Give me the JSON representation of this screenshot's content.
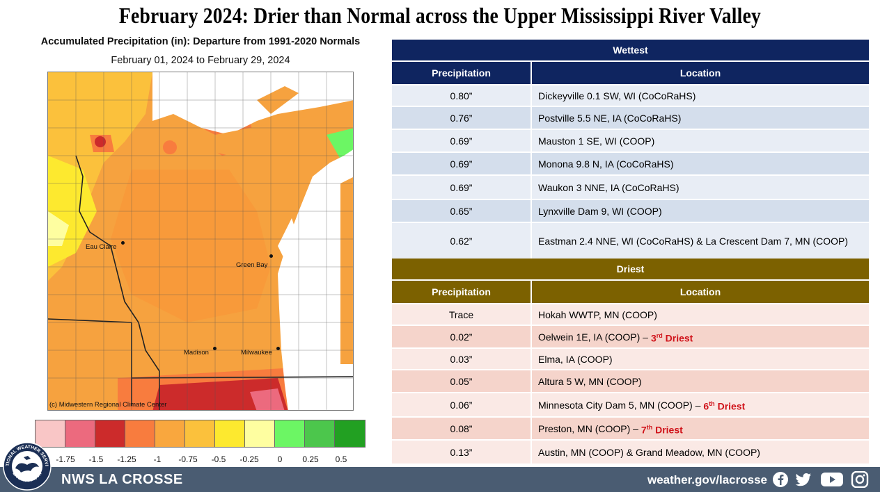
{
  "title": "February 2024:  Drier than Normal across the Upper Mississippi River Valley",
  "map": {
    "title": "Accumulated Precipitation (in): Departure from 1991-2020 Normals",
    "subtitle": "February 01, 2024 to February 29, 2024",
    "credit": "(c) Midwestern Regional Climate Center",
    "cities": [
      "Eau Claire",
      "Green Bay",
      "Madison",
      "Milwaukee"
    ]
  },
  "legend": {
    "colors": [
      "#f9c6c6",
      "#ec6a7e",
      "#cc2b2b",
      "#f87c3e",
      "#f9a73e",
      "#fbc13c",
      "#fde92f",
      "#fefea0",
      "#6cf664",
      "#4cc64c",
      "#22a022"
    ],
    "labels": [
      "-1.75",
      "-1.5",
      "-1.25",
      "-1",
      "-0.75",
      "-0.5",
      "-0.25",
      "0",
      "0.25",
      "0.5"
    ]
  },
  "wettest": {
    "title": "Wettest",
    "col_precip": "Precipitation",
    "col_location": "Location",
    "rows": [
      {
        "precip": "0.80”",
        "location": "Dickeyville  0.1 SW, WI (CoCoRaHS)"
      },
      {
        "precip": "0.76”",
        "location": "Postville 5.5 NE, IA (CoCoRaHS)"
      },
      {
        "precip": "0.69”",
        "location": "Mauston 1 SE, WI (COOP)"
      },
      {
        "precip": "0.69”",
        "location": "Monona 9.8 N, IA (CoCoRaHS)"
      },
      {
        "precip": "0.69”",
        "location": "Waukon 3 NNE, IA (CoCoRaHS)"
      },
      {
        "precip": "0.65”",
        "location": "Lynxville Dam 9, WI (COOP)"
      },
      {
        "precip": "0.62”",
        "location": "Eastman 2.4 NNE, WI (CoCoRaHS) & La Crescent Dam 7, MN (COOP)"
      }
    ]
  },
  "driest": {
    "title": "Driest",
    "col_precip": "Precipitation",
    "col_location": "Location",
    "rows": [
      {
        "precip": "Trace",
        "location": "Hokah WWTP, MN (COOP)",
        "note": ""
      },
      {
        "precip": "0.02”",
        "location": "Oelwein 1E, IA (COOP) –",
        "note": "3rd Driest"
      },
      {
        "precip": "0.03”",
        "location": "Elma, IA (COOP)",
        "note": ""
      },
      {
        "precip": "0.05”",
        "location": "Altura 5 W, MN (COOP)",
        "note": ""
      },
      {
        "precip": "0.06”",
        "location": "Minnesota City Dam 5, MN (COOP) –",
        "note": "6th Driest"
      },
      {
        "precip": "0.08”",
        "location": "Preston, MN (COOP) –",
        "note": "7th Driest"
      },
      {
        "precip": "0.13”",
        "location": "Austin, MN (COOP) & Grand Meadow, MN (COOP)",
        "note": ""
      }
    ]
  },
  "footer": {
    "name": "NWS LA CROSSE",
    "url": "weather.gov/lacrosse",
    "social_icons": [
      "facebook-icon",
      "twitter-icon",
      "youtube-icon",
      "instagram-icon"
    ],
    "logo_text_top": "NATIONAL WEATHER SERVICE",
    "logo_text_bottom": "LA CROSSE, WI"
  }
}
